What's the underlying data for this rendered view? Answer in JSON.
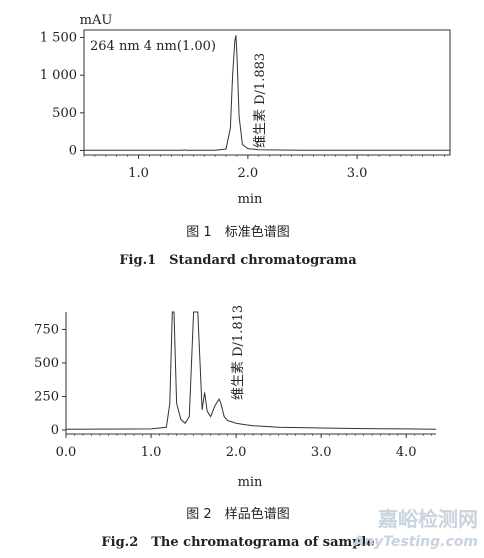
{
  "chart_data": [
    {
      "type": "line",
      "ylabel": "mAU",
      "xlabel": "min",
      "annotation": "264 nm 4 nm(1.00)",
      "peak_label": "维生素 D/1.883",
      "xlim": [
        0.5,
        3.85
      ],
      "ylim": [
        -60,
        1600
      ],
      "xticks": [
        1.0,
        2.0,
        3.0
      ],
      "xtick_labels": [
        "1.0",
        "2.0",
        "3.0"
      ],
      "yticks": [
        0,
        500,
        1000,
        1500
      ],
      "ytick_labels": [
        "0",
        "500",
        "1 000",
        "1 500"
      ],
      "series": [
        {
          "x": [
            0.5,
            1.0,
            1.4,
            1.42,
            1.44,
            1.7,
            1.8,
            1.84,
            1.86,
            1.88,
            1.89,
            1.9,
            1.92,
            1.95,
            2.0,
            2.1,
            2.5,
            3.0,
            3.5,
            3.85
          ],
          "y": [
            2,
            2,
            2,
            8,
            2,
            3,
            20,
            300,
            1000,
            1450,
            1530,
            1250,
            450,
            80,
            25,
            10,
            4,
            3,
            2,
            2
          ]
        }
      ]
    },
    {
      "type": "line",
      "xlabel": "min",
      "peak_label": "维生素 D/1.813",
      "xlim": [
        0.0,
        4.35
      ],
      "ylim": [
        -30,
        880
      ],
      "xticks": [
        0.0,
        1.0,
        2.0,
        3.0,
        4.0
      ],
      "xtick_labels": [
        "0.0",
        "1.0",
        "2.0",
        "3.0",
        "4.0"
      ],
      "yticks": [
        0,
        250,
        500,
        750
      ],
      "ytick_labels": [
        "0",
        "250",
        "500",
        "750"
      ],
      "series": [
        {
          "x": [
            0.0,
            1.0,
            1.18,
            1.22,
            1.25,
            1.27,
            1.3,
            1.35,
            1.4,
            1.45,
            1.5,
            1.55,
            1.6,
            1.63,
            1.66,
            1.7,
            1.75,
            1.8,
            1.82,
            1.86,
            1.9,
            1.95,
            2.0,
            2.1,
            2.2,
            2.5,
            3.0,
            3.5,
            4.0,
            4.35
          ],
          "y": [
            5,
            8,
            20,
            200,
            880,
            880,
            200,
            80,
            50,
            100,
            880,
            880,
            150,
            280,
            140,
            100,
            180,
            230,
            200,
            100,
            70,
            60,
            50,
            40,
            32,
            20,
            15,
            10,
            8,
            5
          ]
        }
      ]
    }
  ],
  "captions": {
    "fig1_cn": "图 1　标准色谱图",
    "fig1_en": "Fig.1　Standard chromatograma",
    "fig2_cn": "图 2　样品色谱图",
    "fig2_en": "Fig.2　The chromatograma of sample"
  },
  "watermark": {
    "cn": "嘉峪检测网",
    "en": "AnyTesting.com"
  },
  "colors": {
    "line": "#333333",
    "axis": "#333333",
    "watermark": "#c9d3de"
  }
}
